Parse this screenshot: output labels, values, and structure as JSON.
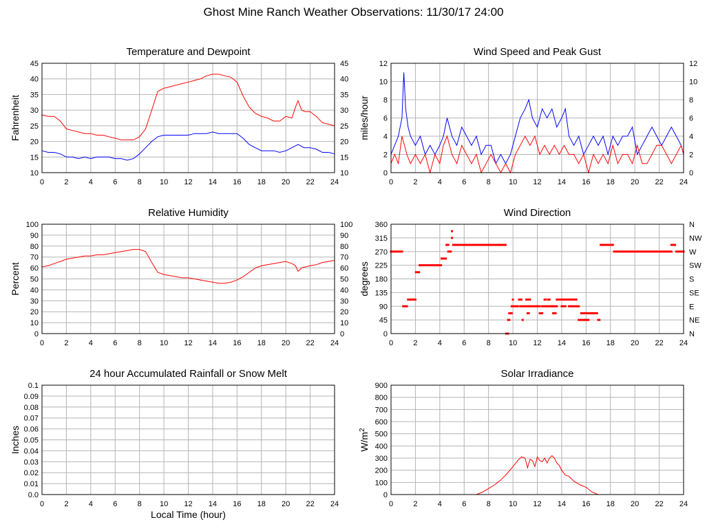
{
  "page_title": "Ghost Mine Ranch Weather Observations: 11/30/17 24:00",
  "x_axis_label": "Local Time (hour)",
  "colors": {
    "red": "#ff0000",
    "blue": "#0000ff",
    "grid": "#b4b4b4"
  },
  "chart_data": [
    {
      "id": "temp",
      "type": "line",
      "title": "Temperature and Dewpoint",
      "ylabel": "Fahrenheit",
      "xlabel": "",
      "xlim": [
        0,
        24
      ],
      "xticks": [
        0,
        2,
        4,
        6,
        8,
        10,
        12,
        14,
        16,
        18,
        20,
        22,
        24
      ],
      "ylim": [
        10,
        45
      ],
      "yticks": [
        10,
        15,
        20,
        25,
        30,
        35,
        40,
        45
      ],
      "right_ticks": [
        "10",
        "15",
        "20",
        "25",
        "30",
        "35",
        "40",
        "45"
      ],
      "grid": true,
      "series": [
        {
          "color": "#ff0000",
          "x": [
            0,
            0.5,
            1,
            1.5,
            2,
            2.5,
            3,
            3.5,
            4,
            4.5,
            5,
            5.5,
            6,
            6.5,
            7,
            7.5,
            8,
            8.5,
            9,
            9.5,
            10,
            10.5,
            11,
            11.5,
            12,
            12.5,
            13,
            13.5,
            14,
            14.5,
            15,
            15.5,
            16,
            16.5,
            17,
            17.5,
            18,
            18.5,
            19,
            19.5,
            20,
            20.5,
            20.8,
            21,
            21.3,
            21.6,
            22,
            22.5,
            23,
            23.5,
            24
          ],
          "y": [
            28.5,
            28,
            28,
            26.5,
            24,
            23.5,
            23,
            22.5,
            22.5,
            22,
            22,
            21.5,
            21,
            20.5,
            20.5,
            20.5,
            21.5,
            24,
            30,
            36,
            37,
            37.5,
            38,
            38.5,
            39,
            39.5,
            40,
            41,
            41.5,
            41.5,
            41,
            40.5,
            39,
            34.5,
            31,
            29,
            28,
            27.5,
            26.5,
            26.5,
            28,
            27.5,
            31,
            33,
            30,
            29.5,
            29.5,
            28,
            26,
            25.5,
            25
          ]
        },
        {
          "color": "#0000ff",
          "x": [
            0,
            0.5,
            1,
            1.5,
            2,
            2.5,
            3,
            3.5,
            4,
            4.5,
            5,
            5.5,
            6,
            6.5,
            7,
            7.5,
            8,
            8.5,
            9,
            9.5,
            10,
            10.5,
            11,
            11.5,
            12,
            12.5,
            13,
            13.5,
            14,
            14.5,
            15,
            15.5,
            16,
            16.5,
            17,
            17.5,
            18,
            18.5,
            19,
            19.5,
            20,
            20.5,
            21,
            21.5,
            22,
            22.5,
            23,
            23.5,
            24
          ],
          "y": [
            17,
            16.5,
            16.5,
            16,
            15,
            15,
            14.5,
            15,
            14.5,
            15,
            15,
            15,
            14.5,
            14.5,
            14,
            14.5,
            16,
            18,
            20,
            21.5,
            22,
            22,
            22,
            22,
            22,
            22.5,
            22.5,
            22.5,
            23,
            22.5,
            22.5,
            22.5,
            22.5,
            21,
            19,
            18,
            17,
            17,
            17,
            16.5,
            17,
            18,
            19,
            18,
            18,
            17.5,
            16.5,
            16.5,
            16
          ]
        }
      ]
    },
    {
      "id": "wind",
      "type": "line",
      "title": "Wind Speed and Peak Gust",
      "ylabel": "miles/hour",
      "xlabel": "",
      "xlim": [
        0,
        24
      ],
      "xticks": [
        0,
        2,
        4,
        6,
        8,
        10,
        12,
        14,
        16,
        18,
        20,
        22,
        24
      ],
      "ylim": [
        0,
        12
      ],
      "yticks": [
        0,
        2,
        4,
        6,
        8,
        10,
        12
      ],
      "right_ticks": [
        "0",
        "2",
        "4",
        "6",
        "8",
        "10",
        "12"
      ],
      "grid": true,
      "series": [
        {
          "color": "#0000ff",
          "x": [
            0,
            0.3,
            0.6,
            0.9,
            1.05,
            1.2,
            1.4,
            1.6,
            2,
            2.4,
            2.8,
            3.2,
            3.6,
            4,
            4.3,
            4.6,
            5,
            5.4,
            5.8,
            6.2,
            6.6,
            7,
            7.4,
            7.8,
            8.2,
            8.6,
            9,
            9.4,
            9.8,
            10.2,
            10.6,
            11,
            11.3,
            11.6,
            12,
            12.4,
            12.8,
            13.2,
            13.6,
            14,
            14.3,
            14.6,
            15,
            15.4,
            15.8,
            16.2,
            16.6,
            17,
            17.4,
            17.8,
            18.2,
            18.6,
            19,
            19.4,
            19.8,
            20.2,
            20.6,
            21,
            21.4,
            21.8,
            22.2,
            22.6,
            23,
            23.4,
            23.8,
            24
          ],
          "y": [
            2,
            3,
            4,
            6,
            11,
            7,
            5,
            4,
            3,
            4,
            2,
            3,
            2,
            3,
            4,
            6,
            4,
            3,
            5,
            4,
            3,
            4,
            2,
            3,
            3,
            1,
            2,
            1,
            2,
            4,
            6,
            7,
            8,
            6,
            5,
            7,
            6,
            7,
            5,
            6,
            7,
            4,
            3,
            4,
            2,
            3,
            4,
            3,
            4,
            2,
            4,
            3,
            4,
            4,
            5,
            2,
            3,
            4,
            5,
            4,
            3,
            4,
            5,
            4,
            3,
            2
          ]
        },
        {
          "color": "#ff0000",
          "x": [
            0,
            0.3,
            0.6,
            0.9,
            1.1,
            1.3,
            1.6,
            2,
            2.4,
            2.8,
            3.2,
            3.6,
            4,
            4.3,
            4.6,
            5,
            5.4,
            5.8,
            6.2,
            6.6,
            7,
            7.4,
            7.8,
            8.2,
            8.6,
            9,
            9.4,
            9.8,
            10.2,
            10.6,
            11,
            11.4,
            11.8,
            12.2,
            12.6,
            13,
            13.4,
            13.8,
            14.2,
            14.6,
            15,
            15.4,
            15.8,
            16.2,
            16.6,
            17,
            17.4,
            17.8,
            18.2,
            18.6,
            19,
            19.4,
            19.8,
            20.2,
            20.6,
            21,
            21.4,
            21.8,
            22.2,
            22.6,
            23,
            23.4,
            23.8,
            24
          ],
          "y": [
            1,
            2,
            1,
            4,
            3,
            2,
            1,
            2,
            1,
            2,
            0,
            2,
            1,
            3,
            4,
            2,
            1,
            3,
            2,
            1,
            2,
            0,
            1,
            2,
            1,
            0,
            1,
            0,
            2,
            3,
            4,
            3,
            4,
            2,
            3,
            2,
            3,
            2,
            3,
            2,
            2,
            1,
            2,
            0,
            2,
            1,
            2,
            1,
            3,
            1,
            2,
            2,
            1,
            3,
            1,
            1,
            2,
            3,
            3,
            2,
            1,
            2,
            3,
            2
          ]
        }
      ]
    },
    {
      "id": "rh",
      "type": "line",
      "title": "Relative Humidity",
      "ylabel": "Percent",
      "xlabel": "",
      "xlim": [
        0,
        24
      ],
      "xticks": [
        0,
        2,
        4,
        6,
        8,
        10,
        12,
        14,
        16,
        18,
        20,
        22,
        24
      ],
      "ylim": [
        0,
        100
      ],
      "yticks": [
        0,
        10,
        20,
        30,
        40,
        50,
        60,
        70,
        80,
        90,
        100
      ],
      "right_ticks": [
        "0",
        "10",
        "20",
        "30",
        "40",
        "50",
        "60",
        "70",
        "80",
        "90",
        "100"
      ],
      "grid": true,
      "series": [
        {
          "color": "#ff0000",
          "x": [
            0,
            0.5,
            1,
            1.5,
            2,
            2.5,
            3,
            3.5,
            4,
            4.5,
            5,
            5.5,
            6,
            6.5,
            7,
            7.5,
            8,
            8.5,
            9,
            9.5,
            10,
            10.5,
            11,
            11.5,
            12,
            12.5,
            13,
            13.5,
            14,
            14.5,
            15,
            15.5,
            16,
            16.5,
            17,
            17.5,
            18,
            18.5,
            19,
            19.5,
            20,
            20.5,
            20.8,
            21,
            21.3,
            21.6,
            22,
            22.5,
            23,
            23.5,
            24
          ],
          "y": [
            61,
            62,
            64,
            66,
            68,
            69,
            70,
            71,
            71,
            72,
            72,
            73,
            74,
            75,
            76,
            77,
            77,
            75,
            65,
            56,
            54,
            53,
            52,
            51,
            51,
            50,
            49,
            48,
            47,
            46,
            46,
            47,
            49,
            52,
            56,
            60,
            62,
            63,
            64,
            65,
            66,
            64,
            62,
            57,
            60,
            61,
            62,
            63,
            65,
            66,
            67
          ]
        }
      ]
    },
    {
      "id": "wdir",
      "type": "scatter",
      "title": "Wind Direction",
      "ylabel": "degrees",
      "xlabel": "",
      "xlim": [
        0,
        24
      ],
      "xticks": [
        0,
        2,
        4,
        6,
        8,
        10,
        12,
        14,
        16,
        18,
        20,
        22,
        24
      ],
      "ylim": [
        0,
        360
      ],
      "yticks": [
        0,
        45,
        90,
        135,
        180,
        225,
        270,
        315,
        360
      ],
      "right_ticks": [
        "N",
        "NE",
        "E",
        "SE",
        "S",
        "SW",
        "W",
        "NW",
        "N"
      ],
      "grid": true,
      "series": [
        {
          "color": "#ff0000",
          "segments": [
            [
              0,
              0.9,
              270
            ],
            [
              1.0,
              1.3,
              90
            ],
            [
              1.4,
              2.0,
              112
            ],
            [
              2.05,
              2.3,
              202
            ],
            [
              2.35,
              4.1,
              225
            ],
            [
              4.15,
              4.5,
              247
            ],
            [
              4.55,
              4.7,
              292
            ],
            [
              4.7,
              4.9,
              270
            ],
            [
              5.0,
              5.0,
              315
            ],
            [
              5.0,
              5.0,
              337
            ],
            [
              5.1,
              9.4,
              292
            ],
            [
              9.45,
              9.6,
              0
            ],
            [
              9.6,
              9.7,
              45
            ],
            [
              9.7,
              9.9,
              67
            ],
            [
              9.9,
              10.4,
              90
            ],
            [
              10.0,
              10.0,
              112
            ],
            [
              10.5,
              10.7,
              112
            ],
            [
              10.6,
              11.2,
              90
            ],
            [
              10.8,
              10.8,
              45
            ],
            [
              11.1,
              11.4,
              112
            ],
            [
              11.2,
              11.3,
              67
            ],
            [
              11.3,
              12.2,
              90
            ],
            [
              12.2,
              12.4,
              67
            ],
            [
              12.4,
              13.2,
              90
            ],
            [
              12.6,
              12.7,
              112
            ],
            [
              12.9,
              13.0,
              112
            ],
            [
              13.2,
              13.6,
              90
            ],
            [
              13.3,
              13.5,
              67
            ],
            [
              13.6,
              14.6,
              112
            ],
            [
              14.0,
              14.3,
              90
            ],
            [
              14.7,
              15.2,
              112
            ],
            [
              14.6,
              15.4,
              90
            ],
            [
              15.4,
              15.9,
              45
            ],
            [
              15.6,
              16.9,
              67
            ],
            [
              16.0,
              16.2,
              45
            ],
            [
              17.0,
              17.1,
              45
            ],
            [
              17.2,
              18.2,
              292
            ],
            [
              18.3,
              23.0,
              270
            ],
            [
              23.0,
              23.3,
              292
            ],
            [
              23.4,
              24,
              270
            ]
          ]
        }
      ]
    },
    {
      "id": "rain",
      "type": "line",
      "title": "24 hour Accumulated Rainfall or Snow Melt",
      "ylabel": "Inches",
      "xlabel": "Local Time (hour)",
      "xlim": [
        0,
        24
      ],
      "xticks": [
        0,
        2,
        4,
        6,
        8,
        10,
        12,
        14,
        16,
        18,
        20,
        22,
        24
      ],
      "ylim": [
        0,
        0.1
      ],
      "yticks": [
        "0.0",
        "0.01",
        "0.02",
        "0.03",
        "0.04",
        "0.05",
        "0.06",
        "0.07",
        "0.08",
        "0.09",
        "0.1"
      ],
      "right_ticks": [],
      "grid": true,
      "series": [
        {
          "color": "#ff0000",
          "x": [
            0,
            24
          ],
          "y": [
            0,
            0
          ]
        }
      ]
    },
    {
      "id": "solar",
      "type": "line",
      "title": "Solar Irradiance",
      "ylabel": "W/m",
      "ylabel_sup": "2",
      "xlabel": "",
      "xlim": [
        0,
        24
      ],
      "xticks": [
        0,
        2,
        4,
        6,
        8,
        10,
        12,
        14,
        16,
        18,
        20,
        22,
        24
      ],
      "ylim": [
        0,
        900
      ],
      "yticks": [
        0,
        100,
        200,
        300,
        400,
        500,
        600,
        700,
        800,
        900
      ],
      "right_ticks": [],
      "grid": true,
      "series": [
        {
          "color": "#ff0000",
          "x": [
            0,
            7,
            7.5,
            8,
            8.5,
            9,
            9.5,
            10,
            10.4,
            10.7,
            11,
            11.2,
            11.4,
            11.6,
            11.8,
            12,
            12.2,
            12.4,
            12.6,
            12.8,
            13,
            13.2,
            13.4,
            13.6,
            13.8,
            14,
            14.3,
            14.6,
            15,
            15.5,
            16,
            16.5,
            17,
            24
          ],
          "y": [
            0,
            0,
            20,
            50,
            80,
            120,
            170,
            230,
            280,
            310,
            300,
            220,
            290,
            280,
            230,
            310,
            280,
            270,
            300,
            260,
            300,
            320,
            300,
            260,
            240,
            200,
            160,
            150,
            110,
            80,
            60,
            20,
            0,
            0
          ]
        }
      ]
    }
  ]
}
